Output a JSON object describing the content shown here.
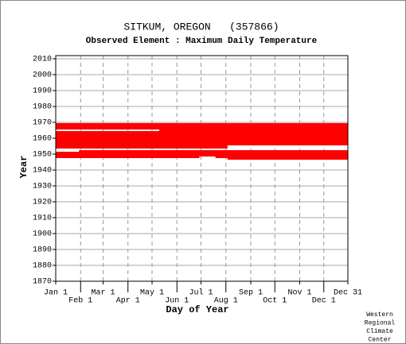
{
  "chart_data": {
    "type": "timeline",
    "title": "SITKUM, OREGON   (357866)",
    "subtitle": "Observed Element : Maximum Daily Temperature",
    "x_label": "Day of Year",
    "y_label": "Year",
    "credit": [
      "Western",
      "Regional",
      "Climate",
      "Center"
    ],
    "color": "#ff0000",
    "grid": true,
    "xlim": [
      1,
      365
    ],
    "ylim": [
      1870,
      2012
    ],
    "xticks": [
      {
        "value": 1,
        "label": "Jan 1"
      },
      {
        "value": 32,
        "label": "Feb 1"
      },
      {
        "value": 60,
        "label": "Mar 1"
      },
      {
        "value": 91,
        "label": "Apr 1"
      },
      {
        "value": 121,
        "label": "May 1"
      },
      {
        "value": 152,
        "label": "Jun 1"
      },
      {
        "value": 182,
        "label": "Jul 1"
      },
      {
        "value": 213,
        "label": "Aug 1"
      },
      {
        "value": 244,
        "label": "Sep 1"
      },
      {
        "value": 274,
        "label": "Oct 1"
      },
      {
        "value": 305,
        "label": "Nov 1"
      },
      {
        "value": 335,
        "label": "Dec 1"
      },
      {
        "value": 365,
        "label": "Dec 31"
      }
    ],
    "yticks": [
      1870,
      1880,
      1890,
      1900,
      1910,
      1920,
      1930,
      1940,
      1950,
      1960,
      1970,
      1980,
      1990,
      2000,
      2010
    ],
    "rows": [
      {
        "year": 1969,
        "ranges": [
          [
            1,
            365
          ]
        ]
      },
      {
        "year": 1968,
        "ranges": [
          [
            1,
            365
          ]
        ]
      },
      {
        "year": 1967,
        "ranges": [
          [
            1,
            365
          ]
        ]
      },
      {
        "year": 1966,
        "ranges": [
          [
            1,
            365
          ]
        ]
      },
      {
        "year": 1965,
        "ranges": [
          [
            130,
            365
          ]
        ]
      },
      {
        "year": 1964,
        "ranges": [
          [
            1,
            365
          ]
        ]
      },
      {
        "year": 1963,
        "ranges": [
          [
            1,
            365
          ]
        ]
      },
      {
        "year": 1962,
        "ranges": [
          [
            1,
            365
          ]
        ]
      },
      {
        "year": 1961,
        "ranges": [
          [
            1,
            365
          ]
        ]
      },
      {
        "year": 1960,
        "ranges": [
          [
            1,
            365
          ]
        ]
      },
      {
        "year": 1959,
        "ranges": [
          [
            1,
            365
          ]
        ]
      },
      {
        "year": 1958,
        "ranges": [
          [
            1,
            365
          ]
        ]
      },
      {
        "year": 1957,
        "ranges": [
          [
            1,
            365
          ]
        ]
      },
      {
        "year": 1956,
        "ranges": [
          [
            1,
            365
          ]
        ]
      },
      {
        "year": 1955,
        "ranges": [
          [
            1,
            215
          ]
        ]
      },
      {
        "year": 1954,
        "ranges": [
          [
            1,
            215
          ]
        ]
      },
      {
        "year": 1952,
        "ranges": [
          [
            30,
            365
          ]
        ]
      },
      {
        "year": 1951,
        "ranges": [
          [
            1,
            365
          ]
        ]
      },
      {
        "year": 1950,
        "ranges": [
          [
            1,
            365
          ]
        ]
      },
      {
        "year": 1949,
        "ranges": [
          [
            1,
            365
          ]
        ]
      },
      {
        "year": 1948,
        "ranges": [
          [
            1,
            180
          ],
          [
            200,
            365
          ]
        ]
      },
      {
        "year": 1947,
        "ranges": [
          [
            215,
            365
          ]
        ]
      }
    ]
  }
}
